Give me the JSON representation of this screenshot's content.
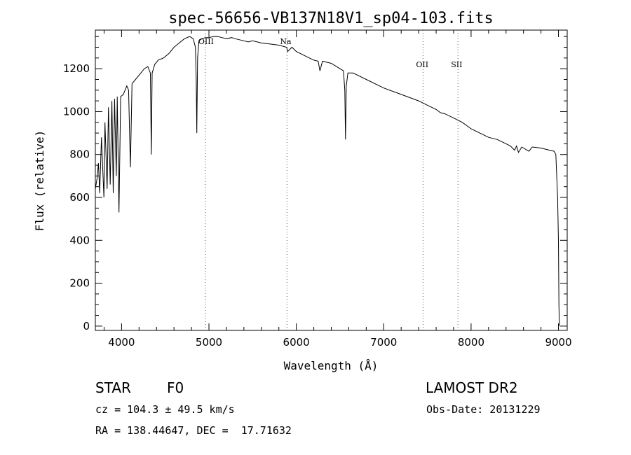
{
  "chart_data": {
    "type": "line",
    "title": "spec-56656-VB137N18V1_sp04-103.fits",
    "xlabel": "Wavelength (Å)",
    "ylabel": "Flux (relative)",
    "xlim": [
      3700,
      9100
    ],
    "ylim": [
      -20,
      1380
    ],
    "x_ticks": [
      4000,
      5000,
      6000,
      7000,
      8000,
      9000
    ],
    "y_ticks": [
      0,
      200,
      400,
      600,
      800,
      1000,
      1200
    ],
    "grid": false,
    "line_markers": [
      {
        "label": "OIII",
        "x": 4959
      },
      {
        "label": "Na",
        "x": 5893
      },
      {
        "label": "OII",
        "x": 7450
      },
      {
        "label": "SII",
        "x": 7850
      }
    ],
    "series": [
      {
        "x": [
          3700,
          3720,
          3735,
          3750,
          3770,
          3798,
          3810,
          3835,
          3850,
          3870,
          3889,
          3905,
          3920,
          3940,
          3950,
          3970,
          3990,
          4020,
          4060,
          4080,
          4101,
          4120,
          4160,
          4200,
          4260,
          4300,
          4330,
          4340,
          4350,
          4380,
          4420,
          4480,
          4540,
          4600,
          4660,
          4720,
          4780,
          4820,
          4845,
          4855,
          4861,
          4870,
          4885,
          4920,
          4960,
          5000,
          5050,
          5100,
          5150,
          5200,
          5260,
          5300,
          5350,
          5400,
          5450,
          5500,
          5600,
          5700,
          5800,
          5890,
          5900,
          5950,
          6000,
          6100,
          6200,
          6250,
          6270,
          6300,
          6400,
          6500,
          6540,
          6555,
          6563,
          6572,
          6590,
          6650,
          6800,
          7000,
          7200,
          7400,
          7500,
          7600,
          7650,
          7700,
          7800,
          7900,
          8000,
          8100,
          8200,
          8300,
          8400,
          8450,
          8498,
          8520,
          8542,
          8580,
          8662,
          8700,
          8800,
          8900,
          8950,
          8970,
          8990,
          9000,
          9005,
          9010
        ],
        "y": [
          640,
          690,
          760,
          620,
          880,
          600,
          950,
          640,
          1020,
          660,
          1050,
          620,
          1060,
          700,
          1070,
          530,
          1070,
          1080,
          1120,
          1100,
          740,
          1130,
          1150,
          1170,
          1200,
          1210,
          1180,
          800,
          1180,
          1220,
          1240,
          1250,
          1270,
          1300,
          1320,
          1340,
          1350,
          1340,
          1300,
          1150,
          900,
          1250,
          1330,
          1340,
          1345,
          1345,
          1350,
          1350,
          1345,
          1340,
          1345,
          1340,
          1335,
          1330,
          1325,
          1330,
          1320,
          1315,
          1310,
          1300,
          1280,
          1300,
          1280,
          1260,
          1240,
          1235,
          1190,
          1235,
          1225,
          1200,
          1190,
          1100,
          870,
          1120,
          1180,
          1180,
          1150,
          1110,
          1080,
          1050,
          1030,
          1010,
          995,
          990,
          970,
          950,
          920,
          900,
          880,
          870,
          850,
          840,
          820,
          840,
          810,
          835,
          815,
          835,
          830,
          820,
          815,
          800,
          600,
          400,
          100,
          0
        ]
      }
    ]
  },
  "info": {
    "object_class": "STAR",
    "subclass": "F0",
    "survey": "LAMOST DR2",
    "cz": "cz = 104.3 ± 49.5 km/s",
    "obs_date": "Obs-Date: 20131229",
    "coords": "RA = 138.44647, DEC =  17.71632"
  }
}
